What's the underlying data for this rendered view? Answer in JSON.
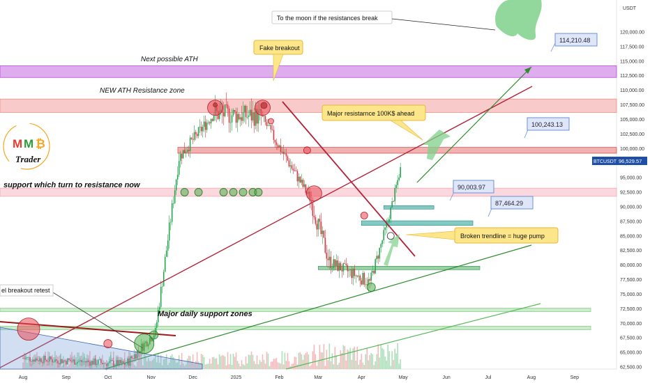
{
  "chart_data": {
    "type": "candlestick",
    "ticker": "BTCUSDT",
    "currency": "USDT",
    "last_price": 96529.57,
    "last_price_label": "96,529.57",
    "y_range": [
      62500,
      122500
    ],
    "y_ticks": [
      "62,500.00",
      "65,000.00",
      "67,500.00",
      "70,000.00",
      "72,500.00",
      "75,000.00",
      "77,500.00",
      "80,000.00",
      "82,500.00",
      "85,000.00",
      "87,500.00",
      "90,000.00",
      "92,500.00",
      "95,000.00",
      "97,500.00",
      "100,000.00",
      "102,500.00",
      "105,000.00",
      "107,500.00",
      "110,000.00",
      "112,500.00",
      "115,000.00",
      "117,500.00",
      "120,000.00"
    ],
    "x_ticks": [
      "Aug",
      "Sep",
      "Oct",
      "Nov",
      "Dec",
      "2025",
      "Feb",
      "Mar",
      "Apr",
      "May",
      "Jun",
      "Jul",
      "Aug",
      "Sep"
    ],
    "zone_labels": {
      "next_ath": "Next possible ATH",
      "new_ath_resistance": "NEW ATH Resistance zone",
      "support_to_resistance": "support which turn to resistance now",
      "daily_support": "Major daily support zones"
    },
    "annotations": {
      "moon": "To the moon if the resistances break",
      "fake_breakout": "Fake breakout",
      "major_resistance": "Major resistarnce 100K$ ahead",
      "broken_trendline": "Broken trendline = huge pump",
      "channel_retest": "el breakout retest"
    },
    "price_callouts": [
      "114,210.48",
      "100,243.13",
      "90,003.97",
      "87,464.29"
    ],
    "zones": [
      {
        "name": "Next possible ATH",
        "from": 112200,
        "to": 114200,
        "color": "#b64ad6"
      },
      {
        "name": "NEW ATH Resistance zone",
        "from": 106200,
        "to": 108500,
        "color": "#f08a8a"
      },
      {
        "name": "Major resistance 100K",
        "from": 99200,
        "to": 100200,
        "color": "#e05252"
      },
      {
        "name": "support which turn to resistance now",
        "from": 91800,
        "to": 93200,
        "color": "#f5a8b4"
      },
      {
        "name": "Major daily support zone 1",
        "from": 72000,
        "to": 72600,
        "color": "#8fd18f"
      },
      {
        "name": "Major daily support zone 2",
        "from": 68900,
        "to": 69500,
        "color": "#8fd18f"
      }
    ],
    "series": [
      {
        "name": "BTCUSDT",
        "segments": [
          {
            "from": "2024-08-01",
            "to": "2024-10-15",
            "start": 64000,
            "end": 63000,
            "amp": 1400
          },
          {
            "from": "2024-10-15",
            "to": "2024-11-05",
            "start": 63000,
            "end": 68500,
            "amp": 1800
          },
          {
            "from": "2024-11-05",
            "to": "2024-11-22",
            "start": 68500,
            "end": 98500,
            "amp": 2500
          },
          {
            "from": "2024-11-22",
            "to": "2024-12-17",
            "start": 98500,
            "end": 106000,
            "amp": 2200
          },
          {
            "from": "2024-12-17",
            "to": "2025-01-20",
            "start": 106000,
            "end": 105500,
            "amp": 3500
          },
          {
            "from": "2025-01-20",
            "to": "2025-02-24",
            "start": 105500,
            "end": 91500,
            "amp": 2000
          },
          {
            "from": "2025-02-24",
            "to": "2025-03-10",
            "start": 91500,
            "end": 80500,
            "amp": 3000
          },
          {
            "from": "2025-03-10",
            "to": "2025-04-08",
            "start": 80500,
            "end": 77000,
            "amp": 2200
          },
          {
            "from": "2025-04-08",
            "to": "2025-04-21",
            "start": 77000,
            "end": 87500,
            "amp": 2000
          },
          {
            "from": "2025-04-21",
            "to": "2025-04-30",
            "start": 87500,
            "end": 96500,
            "amp": 1500
          }
        ]
      }
    ]
  },
  "logo": {
    "m1": "M",
    "m2": "M",
    "b": "₿",
    "trader": "Trader"
  }
}
